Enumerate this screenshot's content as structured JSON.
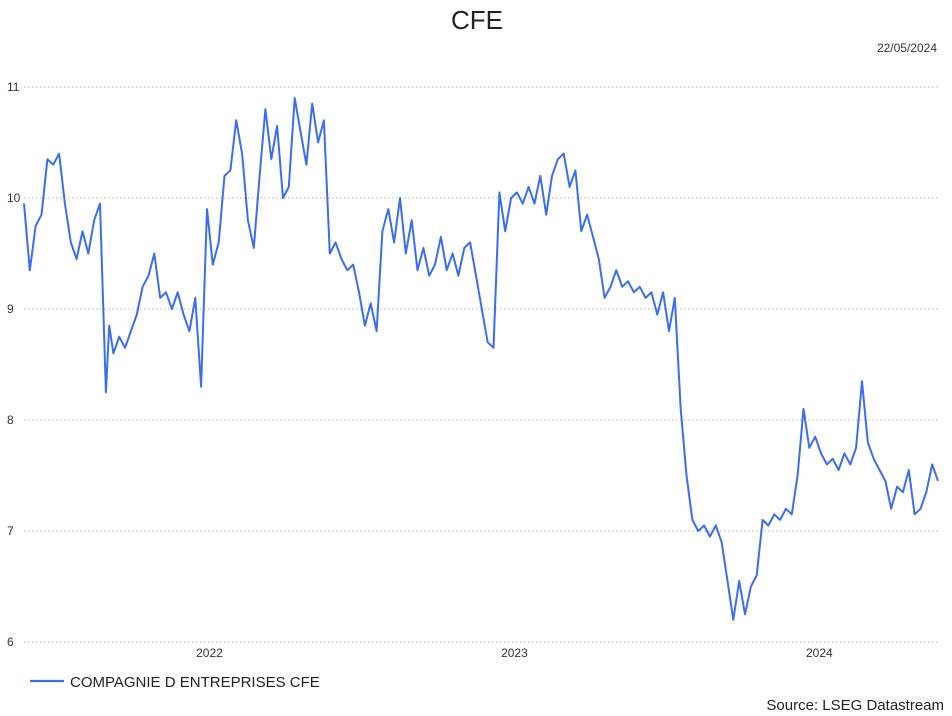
{
  "chart_data": {
    "type": "line",
    "title": "CFE",
    "date": "22/05/2024",
    "source": "Source: LSEG Datastream",
    "xlabel": "",
    "ylabel": "",
    "ylim": [
      6,
      11
    ],
    "y_ticks": [
      "6",
      "7",
      "8",
      "9",
      "10",
      "11"
    ],
    "x_range": [
      "2021-05-24",
      "2024-05-22"
    ],
    "x_ticks": [
      {
        "label": "2022",
        "date": "2022-01-01"
      },
      {
        "label": "2023",
        "date": "2023-01-01"
      },
      {
        "label": "2024",
        "date": "2024-01-01"
      }
    ],
    "grid": true,
    "legend_position": "bottom-left",
    "series": [
      {
        "name": "COMPAGNIE D ENTREPRISES CFE",
        "color": "#3b6df0",
        "points": [
          [
            "2021-05-24",
            9.95
          ],
          [
            "2021-05-31",
            9.35
          ],
          [
            "2021-06-07",
            9.75
          ],
          [
            "2021-06-14",
            9.85
          ],
          [
            "2021-06-21",
            10.35
          ],
          [
            "2021-06-28",
            10.3
          ],
          [
            "2021-07-05",
            10.4
          ],
          [
            "2021-07-12",
            9.95
          ],
          [
            "2021-07-19",
            9.6
          ],
          [
            "2021-07-26",
            9.45
          ],
          [
            "2021-08-02",
            9.7
          ],
          [
            "2021-08-09",
            9.5
          ],
          [
            "2021-08-16",
            9.8
          ],
          [
            "2021-08-23",
            9.95
          ],
          [
            "2021-08-30",
            8.25
          ],
          [
            "2021-09-03",
            8.85
          ],
          [
            "2021-09-08",
            8.6
          ],
          [
            "2021-09-15",
            8.75
          ],
          [
            "2021-09-22",
            8.65
          ],
          [
            "2021-09-29",
            8.8
          ],
          [
            "2021-10-06",
            8.95
          ],
          [
            "2021-10-13",
            9.2
          ],
          [
            "2021-10-20",
            9.3
          ],
          [
            "2021-10-27",
            9.5
          ],
          [
            "2021-11-03",
            9.1
          ],
          [
            "2021-11-10",
            9.15
          ],
          [
            "2021-11-17",
            9.0
          ],
          [
            "2021-11-24",
            9.15
          ],
          [
            "2021-12-01",
            8.95
          ],
          [
            "2021-12-08",
            8.8
          ],
          [
            "2021-12-15",
            9.1
          ],
          [
            "2021-12-22",
            8.3
          ],
          [
            "2021-12-29",
            9.9
          ],
          [
            "2022-01-05",
            9.4
          ],
          [
            "2022-01-12",
            9.6
          ],
          [
            "2022-01-19",
            10.2
          ],
          [
            "2022-01-26",
            10.25
          ],
          [
            "2022-02-02",
            10.7
          ],
          [
            "2022-02-09",
            10.4
          ],
          [
            "2022-02-16",
            9.8
          ],
          [
            "2022-02-23",
            9.55
          ],
          [
            "2022-03-02",
            10.2
          ],
          [
            "2022-03-09",
            10.8
          ],
          [
            "2022-03-16",
            10.35
          ],
          [
            "2022-03-23",
            10.65
          ],
          [
            "2022-03-30",
            10.0
          ],
          [
            "2022-04-06",
            10.1
          ],
          [
            "2022-04-13",
            10.9
          ],
          [
            "2022-04-20",
            10.6
          ],
          [
            "2022-04-27",
            10.3
          ],
          [
            "2022-05-04",
            10.85
          ],
          [
            "2022-05-11",
            10.5
          ],
          [
            "2022-05-18",
            10.7
          ],
          [
            "2022-05-25",
            9.5
          ],
          [
            "2022-06-01",
            9.6
          ],
          [
            "2022-06-08",
            9.45
          ],
          [
            "2022-06-15",
            9.35
          ],
          [
            "2022-06-22",
            9.4
          ],
          [
            "2022-06-29",
            9.15
          ],
          [
            "2022-07-06",
            8.85
          ],
          [
            "2022-07-13",
            9.05
          ],
          [
            "2022-07-20",
            8.8
          ],
          [
            "2022-07-27",
            9.7
          ],
          [
            "2022-08-03",
            9.9
          ],
          [
            "2022-08-10",
            9.6
          ],
          [
            "2022-08-17",
            10.0
          ],
          [
            "2022-08-24",
            9.5
          ],
          [
            "2022-08-31",
            9.8
          ],
          [
            "2022-09-07",
            9.35
          ],
          [
            "2022-09-14",
            9.55
          ],
          [
            "2022-09-21",
            9.3
          ],
          [
            "2022-09-28",
            9.4
          ],
          [
            "2022-10-05",
            9.65
          ],
          [
            "2022-10-12",
            9.35
          ],
          [
            "2022-10-19",
            9.5
          ],
          [
            "2022-10-26",
            9.3
          ],
          [
            "2022-11-02",
            9.55
          ],
          [
            "2022-11-09",
            9.6
          ],
          [
            "2022-11-16",
            9.3
          ],
          [
            "2022-11-23",
            9.0
          ],
          [
            "2022-11-30",
            8.7
          ],
          [
            "2022-12-07",
            8.65
          ],
          [
            "2022-12-14",
            10.05
          ],
          [
            "2022-12-21",
            9.7
          ],
          [
            "2022-12-28",
            10.0
          ],
          [
            "2023-01-04",
            10.05
          ],
          [
            "2023-01-11",
            9.95
          ],
          [
            "2023-01-18",
            10.1
          ],
          [
            "2023-01-25",
            9.95
          ],
          [
            "2023-02-01",
            10.2
          ],
          [
            "2023-02-08",
            9.85
          ],
          [
            "2023-02-15",
            10.2
          ],
          [
            "2023-02-22",
            10.35
          ],
          [
            "2023-03-01",
            10.4
          ],
          [
            "2023-03-08",
            10.1
          ],
          [
            "2023-03-15",
            10.25
          ],
          [
            "2023-03-22",
            9.7
          ],
          [
            "2023-03-29",
            9.85
          ],
          [
            "2023-04-05",
            9.65
          ],
          [
            "2023-04-12",
            9.45
          ],
          [
            "2023-04-19",
            9.1
          ],
          [
            "2023-04-26",
            9.2
          ],
          [
            "2023-05-03",
            9.35
          ],
          [
            "2023-05-10",
            9.2
          ],
          [
            "2023-05-17",
            9.25
          ],
          [
            "2023-05-24",
            9.15
          ],
          [
            "2023-05-31",
            9.2
          ],
          [
            "2023-06-07",
            9.1
          ],
          [
            "2023-06-14",
            9.15
          ],
          [
            "2023-06-21",
            8.95
          ],
          [
            "2023-06-28",
            9.15
          ],
          [
            "2023-07-05",
            8.8
          ],
          [
            "2023-07-12",
            9.1
          ],
          [
            "2023-07-19",
            8.1
          ],
          [
            "2023-07-26",
            7.5
          ],
          [
            "2023-08-02",
            7.1
          ],
          [
            "2023-08-09",
            7.0
          ],
          [
            "2023-08-16",
            7.05
          ],
          [
            "2023-08-23",
            6.95
          ],
          [
            "2023-08-30",
            7.05
          ],
          [
            "2023-09-06",
            6.9
          ],
          [
            "2023-09-13",
            6.55
          ],
          [
            "2023-09-20",
            6.2
          ],
          [
            "2023-09-27",
            6.55
          ],
          [
            "2023-10-04",
            6.25
          ],
          [
            "2023-10-11",
            6.5
          ],
          [
            "2023-10-18",
            6.6
          ],
          [
            "2023-10-25",
            7.1
          ],
          [
            "2023-11-01",
            7.05
          ],
          [
            "2023-11-08",
            7.15
          ],
          [
            "2023-11-15",
            7.1
          ],
          [
            "2023-11-22",
            7.2
          ],
          [
            "2023-11-29",
            7.15
          ],
          [
            "2023-12-06",
            7.5
          ],
          [
            "2023-12-13",
            8.1
          ],
          [
            "2023-12-20",
            7.75
          ],
          [
            "2023-12-27",
            7.85
          ],
          [
            "2024-01-03",
            7.7
          ],
          [
            "2024-01-10",
            7.6
          ],
          [
            "2024-01-17",
            7.65
          ],
          [
            "2024-01-24",
            7.55
          ],
          [
            "2024-01-31",
            7.7
          ],
          [
            "2024-02-07",
            7.6
          ],
          [
            "2024-02-14",
            7.75
          ],
          [
            "2024-02-21",
            8.35
          ],
          [
            "2024-02-28",
            7.8
          ],
          [
            "2024-03-06",
            7.65
          ],
          [
            "2024-03-13",
            7.55
          ],
          [
            "2024-03-20",
            7.45
          ],
          [
            "2024-03-27",
            7.2
          ],
          [
            "2024-04-03",
            7.4
          ],
          [
            "2024-04-10",
            7.35
          ],
          [
            "2024-04-17",
            7.55
          ],
          [
            "2024-04-24",
            7.15
          ],
          [
            "2024-05-01",
            7.2
          ],
          [
            "2024-05-08",
            7.35
          ],
          [
            "2024-05-15",
            7.6
          ],
          [
            "2024-05-22",
            7.45
          ]
        ]
      }
    ]
  }
}
